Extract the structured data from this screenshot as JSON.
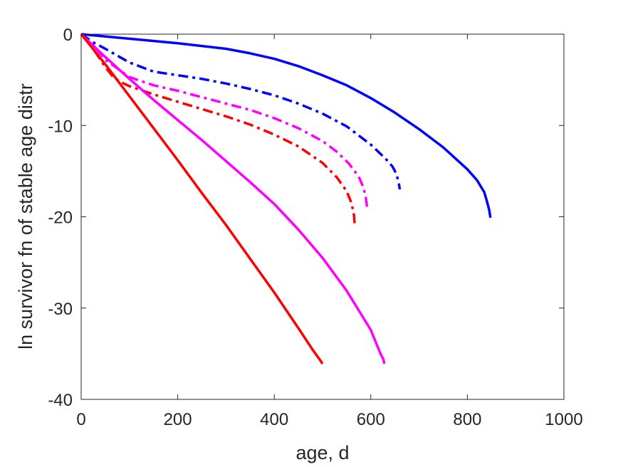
{
  "chart_data": {
    "type": "line",
    "xlabel": "age, d",
    "ylabel": "ln survivor fn of stable age distr",
    "xlim": [
      0,
      1000
    ],
    "ylim": [
      -40,
      0
    ],
    "xticks": [
      0,
      200,
      400,
      600,
      800,
      1000
    ],
    "yticks": [
      -40,
      -30,
      -20,
      -10,
      0
    ],
    "xtick_labels": [
      "0",
      "200",
      "400",
      "600",
      "800",
      "1000"
    ],
    "ytick_labels": [
      "-40",
      "-30",
      "-20",
      "-10",
      "0"
    ],
    "grid": false,
    "box": true,
    "series": [
      {
        "color": "#0000ff",
        "style": "solid",
        "x": [
          0,
          100,
          200,
          300,
          350,
          400,
          450,
          500,
          550,
          600,
          650,
          700,
          750,
          800,
          820,
          835,
          840,
          845,
          848
        ],
        "y": [
          0,
          -0.5,
          -1.0,
          -1.6,
          -2.1,
          -2.7,
          -3.5,
          -4.5,
          -5.6,
          -7.0,
          -8.6,
          -10.4,
          -12.4,
          -14.8,
          -16.0,
          -17.3,
          -18.2,
          -19.2,
          -20.1
        ]
      },
      {
        "color": "#0000ff",
        "style": "dashdot",
        "x": [
          0,
          25,
          50,
          100,
          150,
          200,
          250,
          300,
          350,
          400,
          450,
          500,
          550,
          600,
          630,
          645,
          653,
          658,
          660
        ],
        "y": [
          0,
          -0.9,
          -1.6,
          -3.1,
          -4.1,
          -4.5,
          -4.9,
          -5.4,
          -6.0,
          -6.7,
          -7.6,
          -8.7,
          -10.1,
          -12.1,
          -13.6,
          -14.5,
          -15.3,
          -16.3,
          -17.0
        ]
      },
      {
        "color": "#ff00ff",
        "style": "dashdot",
        "x": [
          0,
          25,
          50,
          100,
          150,
          200,
          250,
          300,
          350,
          400,
          450,
          500,
          530,
          555,
          575,
          585,
          590,
          592
        ],
        "y": [
          0,
          -1.2,
          -2.8,
          -4.7,
          -5.6,
          -6.2,
          -6.9,
          -7.6,
          -8.3,
          -9.2,
          -10.3,
          -11.7,
          -12.9,
          -14.2,
          -15.6,
          -16.8,
          -18.0,
          -18.9
        ]
      },
      {
        "color": "#ff0000",
        "style": "dashdot",
        "x": [
          0,
          15,
          30,
          50,
          65,
          80,
          100,
          150,
          200,
          250,
          300,
          350,
          400,
          450,
          500,
          530,
          550,
          560,
          565,
          567
        ],
        "y": [
          0,
          -0.9,
          -2.0,
          -3.6,
          -4.6,
          -5.2,
          -5.7,
          -6.6,
          -7.4,
          -8.2,
          -9.0,
          -9.9,
          -11.0,
          -12.3,
          -14.1,
          -15.7,
          -17.2,
          -18.5,
          -19.8,
          -21.1
        ]
      },
      {
        "color": "#ff00ff",
        "style": "solid",
        "x": [
          0,
          50,
          100,
          150,
          200,
          250,
          300,
          350,
          400,
          450,
          500,
          550,
          600,
          620,
          626,
          628
        ],
        "y": [
          0,
          -2.5,
          -4.9,
          -7.2,
          -9.4,
          -11.6,
          -13.9,
          -16.2,
          -18.6,
          -21.4,
          -24.5,
          -28.1,
          -32.4,
          -35.0,
          -35.6,
          -36.1
        ]
      },
      {
        "color": "#ff0000",
        "style": "solid",
        "x": [
          0,
          50,
          100,
          150,
          200,
          250,
          300,
          350,
          400,
          450,
          480,
          495,
          500
        ],
        "y": [
          0,
          -3.3,
          -6.8,
          -10.3,
          -13.8,
          -17.4,
          -20.9,
          -24.6,
          -28.3,
          -32.2,
          -34.6,
          -35.7,
          -36.1
        ]
      }
    ]
  }
}
